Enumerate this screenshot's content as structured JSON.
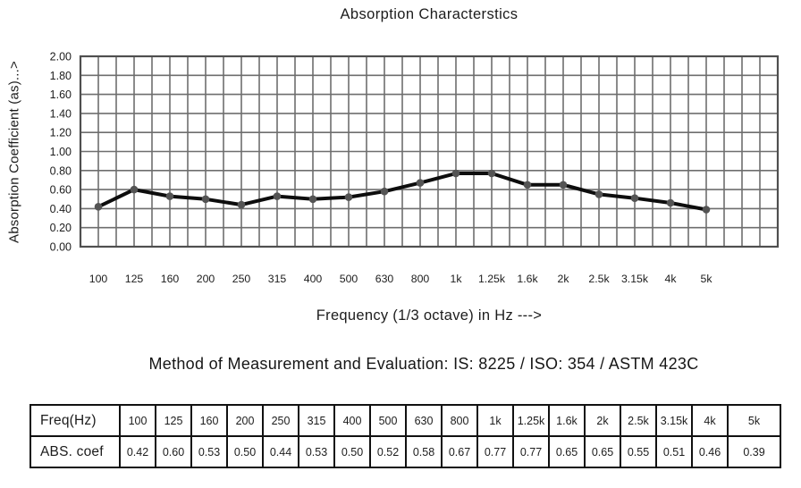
{
  "title": "Absorption Characterstics",
  "method_line": "Method of Measurement and Evaluation: IS: 8225 / ISO: 354 / ASTM 423C",
  "chart_data": {
    "type": "line",
    "title": "Absorption Characterstics",
    "xlabel": "Frequency (1/3 octave) in Hz --->",
    "ylabel": "Absorption Coefficient (as)...>",
    "categories": [
      "100",
      "125",
      "160",
      "200",
      "250",
      "315",
      "400",
      "500",
      "630",
      "800",
      "1k",
      "1.25k",
      "1.6k",
      "2k",
      "2.5k",
      "3.15k",
      "4k",
      "5k"
    ],
    "values": [
      0.42,
      0.6,
      0.53,
      0.5,
      0.44,
      0.53,
      0.5,
      0.52,
      0.58,
      0.67,
      0.77,
      0.77,
      0.65,
      0.65,
      0.55,
      0.51,
      0.46,
      0.39
    ],
    "ylim": [
      0.0,
      2.0
    ],
    "ytick_step": 0.2,
    "ytick_labels": [
      "2.00",
      "1.80",
      "1.60",
      "1.40",
      "1.20",
      "1.00",
      "0.80",
      "0.60",
      "0.40",
      "0.20",
      "0.00"
    ],
    "grid": true,
    "legend": "none",
    "colors": {
      "line": "#0d0d0d",
      "marker": "#545454",
      "grid": "#6e6e6e",
      "plot_border": "#4f4f4f",
      "text": "#1c1c1c",
      "table_border": "#111111"
    }
  },
  "table": {
    "rows": [
      {
        "label": "Freq(Hz)",
        "values": [
          "100",
          "125",
          "160",
          "200",
          "250",
          "315",
          "400",
          "500",
          "630",
          "800",
          "1k",
          "1.25k",
          "1.6k",
          "2k",
          "2.5k",
          "3.15k",
          "4k",
          "5k"
        ]
      },
      {
        "label": "ABS. coef",
        "values": [
          "0.42",
          "0.60",
          "0.53",
          "0.50",
          "0.44",
          "0.53",
          "0.50",
          "0.52",
          "0.58",
          "0.67",
          "0.77",
          "0.77",
          "0.65",
          "0.65",
          "0.55",
          "0.51",
          "0.46",
          "0.39"
        ]
      }
    ]
  }
}
